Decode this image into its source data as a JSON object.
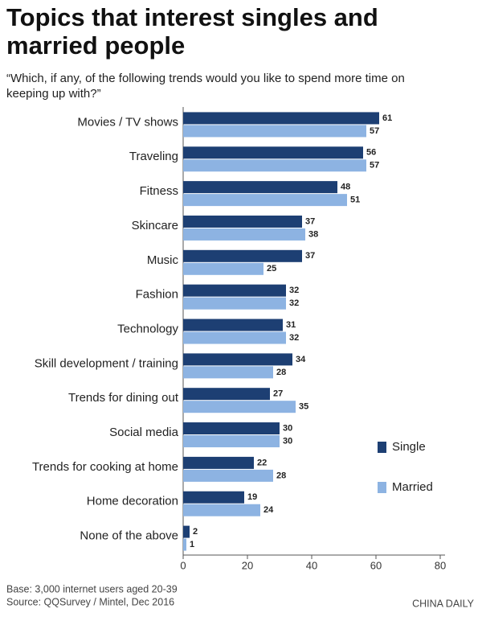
{
  "chart_data": {
    "type": "barh",
    "title": "Topics that interest singles and married people",
    "subtitle": "“Which, if any, of the following trends would you like to spend more time on keeping up with?”",
    "categories": [
      "Movies / TV shows",
      "Traveling",
      "Fitness",
      "Skincare",
      "Music",
      "Fashion",
      "Technology",
      "Skill development / training",
      "Trends for dining out",
      "Social media",
      "Trends for cooking at home",
      "Home decoration",
      "None of the above"
    ],
    "series": [
      {
        "name": "Single",
        "color": "#1d3f73",
        "values": [
          61,
          56,
          48,
          37,
          37,
          32,
          31,
          34,
          27,
          30,
          22,
          19,
          2
        ]
      },
      {
        "name": "Married",
        "color": "#8db3e2",
        "values": [
          57,
          57,
          51,
          38,
          25,
          32,
          32,
          28,
          35,
          30,
          28,
          24,
          1
        ]
      }
    ],
    "xlim": [
      0,
      80
    ],
    "xticks": [
      0,
      20,
      40,
      60,
      80
    ],
    "grid": false,
    "legend": "lower right",
    "notes": [
      "Base: 3,000 internet users aged 20-39",
      "Source: QQSurvey / Mintel, Dec 2016"
    ],
    "credit": "CHINA DAILY"
  }
}
